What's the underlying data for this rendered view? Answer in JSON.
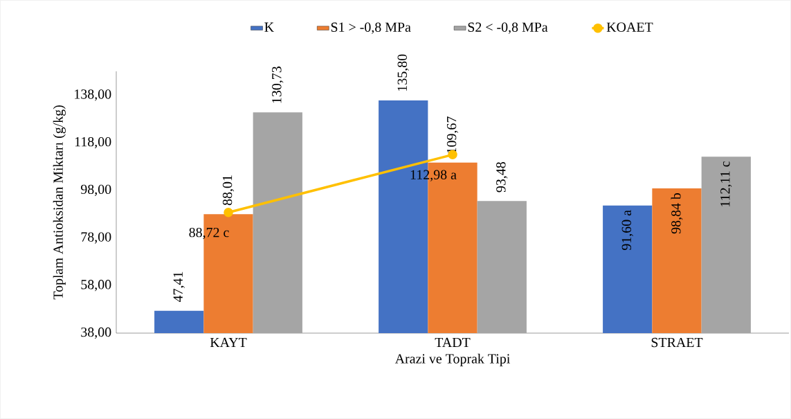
{
  "chart_data": {
    "type": "bar",
    "xlabel": "Arazi ve Toprak Tipi",
    "ylabel": "Toplam Antioksidan Miktarı (g/kg)",
    "categories": [
      "KAYT",
      "TADT",
      "STRAET"
    ],
    "series": [
      {
        "name": "K",
        "color": "#4472c4",
        "values": [
          47.41,
          135.8,
          91.6
        ],
        "value_labels": [
          "47,41",
          "135,80",
          "91,60 a"
        ]
      },
      {
        "name": "S1  > -0,8 MPa",
        "color": "#ed7d31",
        "values": [
          88.01,
          109.67,
          98.84
        ],
        "value_labels": [
          "88,01",
          "109,67",
          "98,84 b"
        ]
      },
      {
        "name": "S2  < -0,8 MPa",
        "color": "#a5a5a5",
        "values": [
          130.73,
          93.48,
          112.11
        ],
        "value_labels": [
          "130,73",
          "93,48",
          "112,11 c"
        ]
      },
      {
        "name": "KOAET",
        "type": "line",
        "color": "#ffc000",
        "marker": "circle",
        "values": [
          88.72,
          112.98,
          null
        ],
        "value_labels": [
          "88,72 c",
          "112,98 a",
          null
        ]
      }
    ],
    "ylim": [
      38,
      148
    ],
    "yticks": [
      {
        "value": 38,
        "label": "38,00"
      },
      {
        "value": 58,
        "label": "58,00"
      },
      {
        "value": 78,
        "label": "78,00"
      },
      {
        "value": 98,
        "label": "98,00"
      },
      {
        "value": 118,
        "label": "118,00"
      },
      {
        "value": 138,
        "label": "138,00"
      }
    ],
    "legend": "top",
    "grid": false
  }
}
